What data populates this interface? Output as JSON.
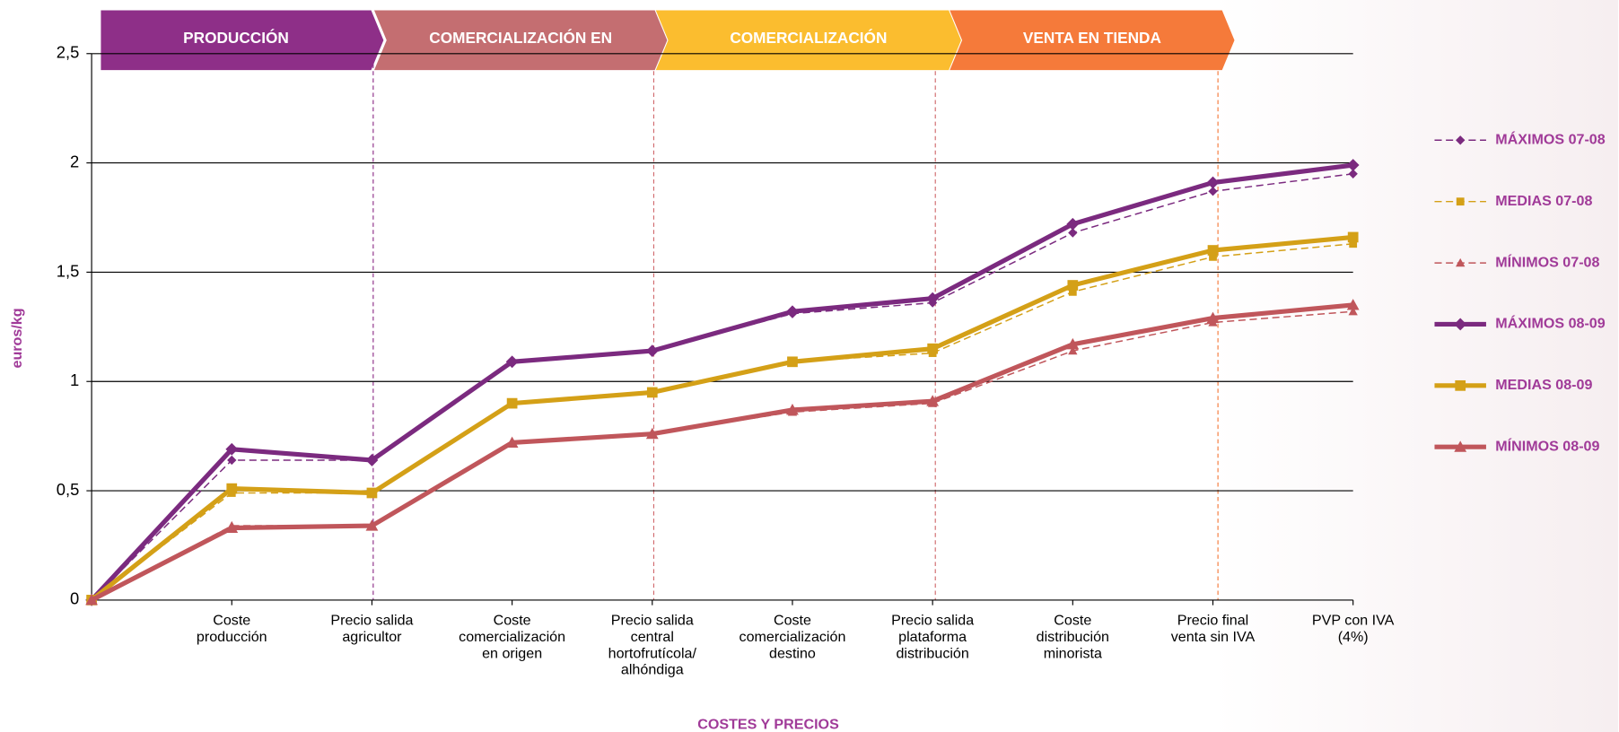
{
  "chart_data": {
    "type": "line",
    "y_axis_label": "euros/kg",
    "x_axis_label": "COSTES Y PRECIOS",
    "annotations": [
      {
        "text": "PRODUCCIÓN",
        "color": "#8e2f88"
      },
      {
        "text": "COMERCIALIZACIÓN EN",
        "color": "#c46e71"
      },
      {
        "text": "COMERCIALIZACIÓN",
        "color": "#fbbd2f"
      },
      {
        "text": "VENTA EN TIENDA",
        "color": "#f57a3a"
      }
    ],
    "categories": [
      null,
      "Coste\nproducción",
      "Precio salida\nagricultor",
      "Coste\ncomercialización\nen origen",
      "Precio salida\ncentral\nhortofrutícola/\nalhóndiga",
      "Coste\ncomercialización\ndestino",
      "Precio salida\nplataforma\ndistribución",
      "Coste\ndistribución\nminorista",
      "Precio final\nventa sin IVA",
      "PVP con IVA\n(4%)"
    ],
    "ylim": [
      0,
      2.5
    ],
    "yticks": [
      0,
      {
        "value": 0.5,
        "label": "0,5"
      },
      1,
      {
        "value": 1.5,
        "label": "1,5"
      },
      2,
      {
        "value": 2.5,
        "label": "2,5"
      }
    ],
    "grid": true,
    "legend": "right",
    "series": [
      {
        "name": "MÁXIMOS 07-08",
        "color": "#7b2a7f",
        "marker": "diamond",
        "dashed": true,
        "values": [
          0,
          0.64,
          0.64,
          1.09,
          1.14,
          1.31,
          1.36,
          1.68,
          1.87,
          1.95
        ]
      },
      {
        "name": "MEDIAS 07-08",
        "color": "#d4a017",
        "marker": "square",
        "dashed": true,
        "values": [
          0,
          0.49,
          0.49,
          0.9,
          0.95,
          1.09,
          1.13,
          1.41,
          1.57,
          1.63
        ]
      },
      {
        "name": "MÍNIMOS 07-08",
        "color": "#c0565b",
        "marker": "triangle",
        "dashed": true,
        "values": [
          0,
          0.34,
          0.34,
          0.72,
          0.76,
          0.86,
          0.9,
          1.14,
          1.27,
          1.32
        ]
      },
      {
        "name": "MÁXIMOS 08-09",
        "color": "#7b2a7f",
        "marker": "diamond",
        "dashed": false,
        "values": [
          0,
          0.69,
          0.64,
          1.09,
          1.14,
          1.32,
          1.38,
          1.72,
          1.91,
          1.99
        ]
      },
      {
        "name": "MEDIAS 08-09",
        "color": "#d4a017",
        "marker": "square",
        "dashed": false,
        "values": [
          0,
          0.51,
          0.49,
          0.9,
          0.95,
          1.09,
          1.15,
          1.44,
          1.6,
          1.66
        ]
      },
      {
        "name": "MÍNIMOS 08-09",
        "color": "#c0565b",
        "marker": "triangle",
        "dashed": false,
        "values": [
          0,
          0.33,
          0.34,
          0.72,
          0.76,
          0.87,
          0.91,
          1.17,
          1.29,
          1.35
        ]
      }
    ]
  }
}
